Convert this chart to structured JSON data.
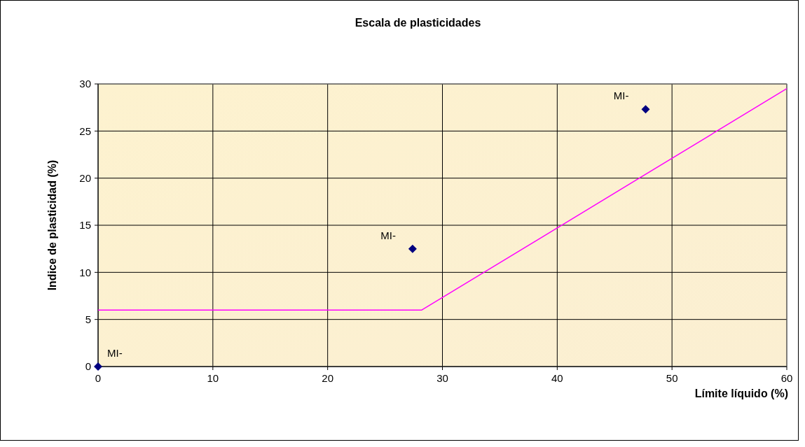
{
  "chart_data": {
    "type": "scatter",
    "title": "Escala de plasticidades",
    "xlabel": "Límite líquido (%)",
    "ylabel": "Indice de plasticidad (%)",
    "xlim": [
      0,
      60
    ],
    "xticks": [
      0,
      10,
      20,
      30,
      40,
      50,
      60
    ],
    "ylim": [
      0,
      30
    ],
    "yticks": [
      0,
      5,
      10,
      15,
      20,
      25,
      30
    ],
    "grid": true,
    "series": [
      {
        "color": "#000080",
        "marker": "diamond",
        "x": [
          0,
          27.4,
          47.7
        ],
        "values": [
          0,
          12.5,
          27.3
        ]
      },
      {
        "type": "line",
        "color": "#ff00ff",
        "marker": "none",
        "line_style": "solid",
        "x": [
          0,
          28.2,
          60
        ],
        "values": [
          6,
          6,
          29.5
        ]
      }
    ],
    "annotations": [
      {
        "text": "MI-",
        "x": 0,
        "y": 0
      },
      {
        "text": "MI-",
        "x": 27.4,
        "y": 12.5
      },
      {
        "text": "MI-",
        "x": 47.7,
        "y": 27.3
      }
    ]
  }
}
